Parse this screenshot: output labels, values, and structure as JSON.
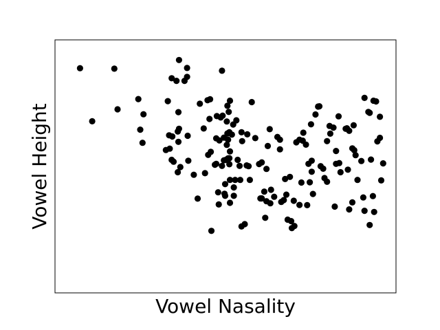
{
  "chart_data": {
    "type": "scatter",
    "title": "",
    "xlabel": "Vowel Nasality",
    "ylabel": "Vowel Height",
    "xlim": [
      0,
      100
    ],
    "ylim": [
      0,
      100
    ],
    "grid": false,
    "ticks_visible": false,
    "marker_color": "#000000",
    "points": [
      [
        4.6,
        92.0
      ],
      [
        8.4,
        69.3
      ],
      [
        15.3,
        91.8
      ],
      [
        16.3,
        74.4
      ],
      [
        22.8,
        78.8
      ],
      [
        23.4,
        65.7
      ],
      [
        24.1,
        60.1
      ],
      [
        24.4,
        72.3
      ],
      [
        31.4,
        57.0
      ],
      [
        32.6,
        57.6
      ],
      [
        32.0,
        77.9
      ],
      [
        32.4,
        63.3
      ],
      [
        33.4,
        62.8
      ],
      [
        33.2,
        52.8
      ],
      [
        33.8,
        52.0
      ],
      [
        33.2,
        87.7
      ],
      [
        34.7,
        86.6
      ],
      [
        35.5,
        95.5
      ],
      [
        35.3,
        60.5
      ],
      [
        35.5,
        66.1
      ],
      [
        35.1,
        64.9
      ],
      [
        35.3,
        73.2
      ],
      [
        35.1,
        47.5
      ],
      [
        35.9,
        49.7
      ],
      [
        37.2,
        86.6
      ],
      [
        38.0,
        88.3
      ],
      [
        38.0,
        92.1
      ],
      [
        38.2,
        63.1
      ],
      [
        38.4,
        52.4
      ],
      [
        40.1,
        46.4
      ],
      [
        41.3,
        36.2
      ],
      [
        42.0,
        76.8
      ],
      [
        43.2,
        66.2
      ],
      [
        44.4,
        78.3
      ],
      [
        43.6,
        47.1
      ],
      [
        44.6,
        54.9
      ],
      [
        45.0,
        70.3
      ],
      [
        45.4,
        56.2
      ],
      [
        45.2,
        78.7
      ],
      [
        46.7,
        50.7
      ],
      [
        47.1,
        62.0
      ],
      [
        47.3,
        71.5
      ],
      [
        45.6,
        22.4
      ],
      [
        47.7,
        38.9
      ],
      [
        48.5,
        70.9
      ],
      [
        48.9,
        90.9
      ],
      [
        49.1,
        71.7
      ],
      [
        48.1,
        61.1
      ],
      [
        49.5,
        52.6
      ],
      [
        49.5,
        62.3
      ],
      [
        47.9,
        33.7
      ],
      [
        47.1,
        51.1
      ],
      [
        50.1,
        52.8
      ],
      [
        49.9,
        42.4
      ],
      [
        48.9,
        50.2
      ],
      [
        49.7,
        38.3
      ],
      [
        50.4,
        69.2
      ],
      [
        50.6,
        64.1
      ],
      [
        51.2,
        53.5
      ],
      [
        50.8,
        53.4
      ],
      [
        51.2,
        50.9
      ],
      [
        49.9,
        37.4
      ],
      [
        51.4,
        44.2
      ],
      [
        50.8,
        61.4
      ],
      [
        50.6,
        75.9
      ],
      [
        50.4,
        59.2
      ],
      [
        51.0,
        73.3
      ],
      [
        51.4,
        34.4
      ],
      [
        51.4,
        78.1
      ],
      [
        51.2,
        64.6
      ],
      [
        51.4,
        56.4
      ],
      [
        52.0,
        63.6
      ],
      [
        52.6,
        41.0
      ],
      [
        52.4,
        67.9
      ],
      [
        53.0,
        44.2
      ],
      [
        52.6,
        37.4
      ],
      [
        53.8,
        52.8
      ],
      [
        53.4,
        69.7
      ],
      [
        54.4,
        50.2
      ],
      [
        55.2,
        60.8
      ],
      [
        55.0,
        64.6
      ],
      [
        54.6,
        44.2
      ],
      [
        55.0,
        24.3
      ],
      [
        56.0,
        25.3
      ],
      [
        56.6,
        50.4
      ],
      [
        56.8,
        63.7
      ],
      [
        57.2,
        50.1
      ],
      [
        57.6,
        44.2
      ],
      [
        58.2,
        77.5
      ],
      [
        59.3,
        62.1
      ],
      [
        60.5,
        51.0
      ],
      [
        61.3,
        51.7
      ],
      [
        60.9,
        36.3
      ],
      [
        61.3,
        36.3
      ],
      [
        62.1,
        39.2
      ],
      [
        62.4,
        28.0
      ],
      [
        62.8,
        48.9
      ],
      [
        63.2,
        58.7
      ],
      [
        62.8,
        35.1
      ],
      [
        63.8,
        65.9
      ],
      [
        64.2,
        40.0
      ],
      [
        64.0,
        34.2
      ],
      [
        65.2,
        37.0
      ],
      [
        66.2,
        62.6
      ],
      [
        67.0,
        57.3
      ],
      [
        67.4,
        34.8
      ],
      [
        67.0,
        61.4
      ],
      [
        68.2,
        35.6
      ],
      [
        68.6,
        44.6
      ],
      [
        69.0,
        37.9
      ],
      [
        69.4,
        27.2
      ],
      [
        70.1,
        45.5
      ],
      [
        70.5,
        26.6
      ],
      [
        70.7,
        23.6
      ],
      [
        71.5,
        24.5
      ],
      [
        71.3,
        35.3
      ],
      [
        72.1,
        60.3
      ],
      [
        73.1,
        61.4
      ],
      [
        73.7,
        43.1
      ],
      [
        73.1,
        33.5
      ],
      [
        74.1,
        61.0
      ],
      [
        74.3,
        64.4
      ],
      [
        75.1,
        59.3
      ],
      [
        75.9,
        51.1
      ],
      [
        76.7,
        68.0
      ],
      [
        76.9,
        47.7
      ],
      [
        75.5,
        33.4
      ],
      [
        76.3,
        43.2
      ],
      [
        77.3,
        38.2
      ],
      [
        78.1,
        72.2
      ],
      [
        78.9,
        75.6
      ],
      [
        79.3,
        75.7
      ],
      [
        80.5,
        49.0
      ],
      [
        81.7,
        60.8
      ],
      [
        82.5,
        67.3
      ],
      [
        82.7,
        64.0
      ],
      [
        83.7,
        66.6
      ],
      [
        84.1,
        32.8
      ],
      [
        84.5,
        56.6
      ],
      [
        85.3,
        71.4
      ],
      [
        85.5,
        51.4
      ],
      [
        85.9,
        47.5
      ],
      [
        87.5,
        66.1
      ],
      [
        87.9,
        66.3
      ],
      [
        88.2,
        48.6
      ],
      [
        88.6,
        65.2
      ],
      [
        89.6,
        57.7
      ],
      [
        90.2,
        56.9
      ],
      [
        90.6,
        54.8
      ],
      [
        91.2,
        44.2
      ],
      [
        92.4,
        52.3
      ],
      [
        93.0,
        36.7
      ],
      [
        93.4,
        31.0
      ],
      [
        94.6,
        73.3
      ],
      [
        95.0,
        72.9
      ],
      [
        95.4,
        52.9
      ],
      [
        95.0,
        24.9
      ],
      [
        96.0,
        37.3
      ],
      [
        96.4,
        30.5
      ],
      [
        97.4,
        60.7
      ],
      [
        98.2,
        62.2
      ],
      [
        98.6,
        44.0
      ],
      [
        99.2,
        51.3
      ],
      [
        97.0,
        77.8
      ],
      [
        96.2,
        78.1
      ],
      [
        93.4,
        79.3
      ],
      [
        90.0,
        67.6
      ],
      [
        88.6,
        31.6
      ],
      [
        84.5,
        51.1
      ],
      [
        81.7,
        43.4
      ],
      [
        80.9,
        45.0
      ],
      [
        79.7,
        50.1
      ],
      [
        76.9,
        52.4
      ],
      [
        89.6,
        34.6
      ],
      [
        98.2,
        71.2
      ]
    ]
  }
}
